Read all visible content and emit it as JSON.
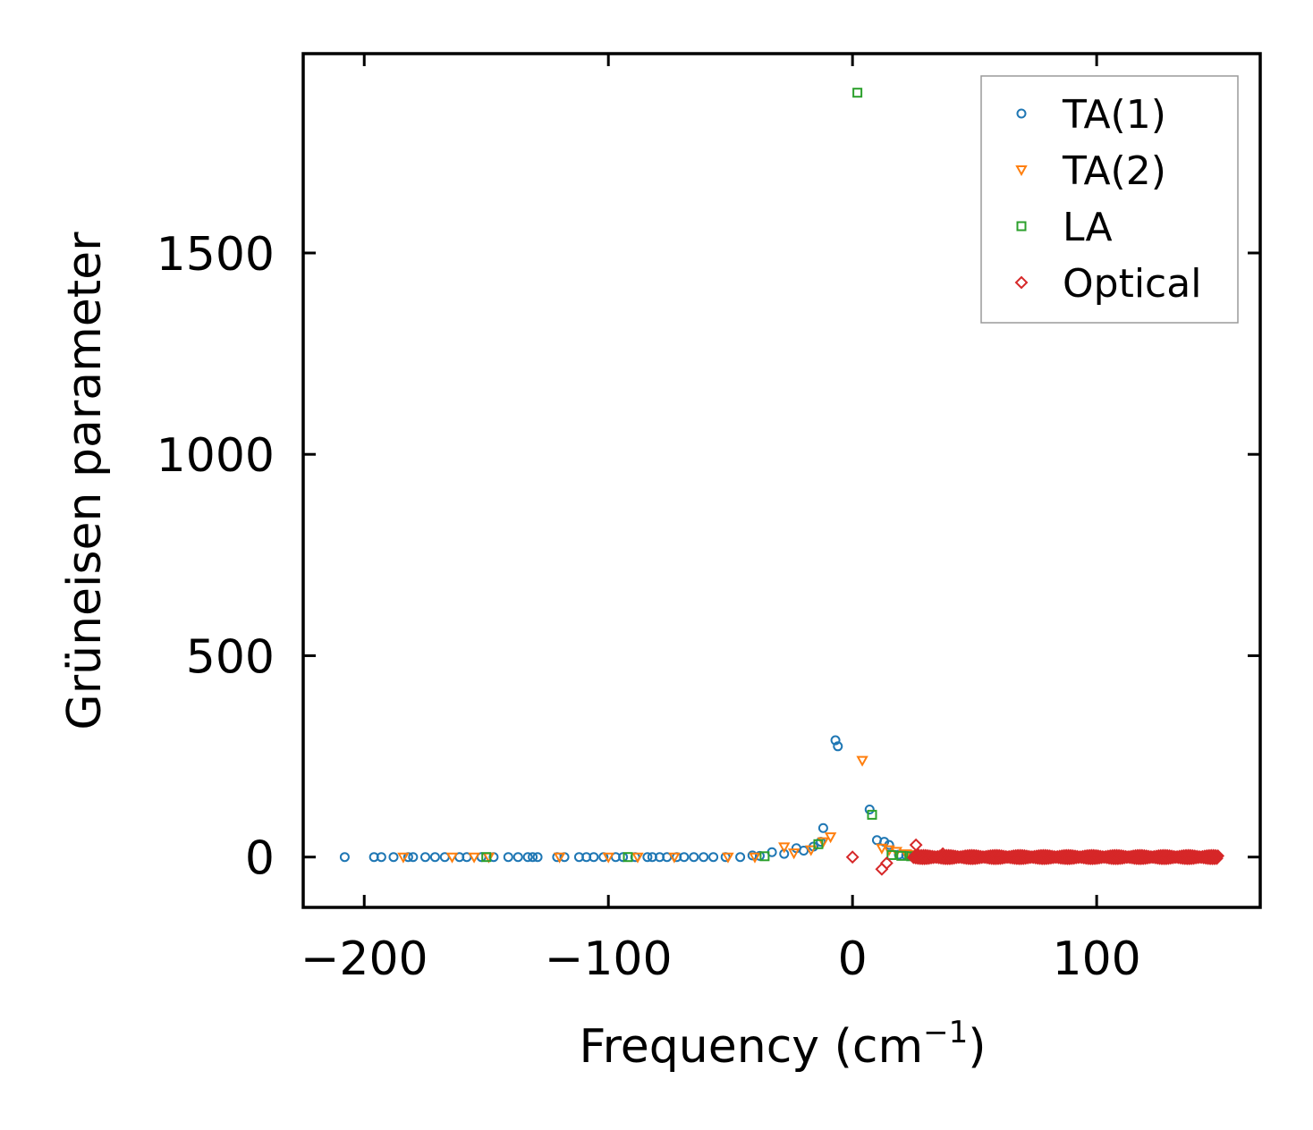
{
  "chart_data": {
    "type": "scatter",
    "xlabel": "Frequency (cm",
    "xlabel_sup": "−1",
    "xlabel_close": ")",
    "ylabel": "Grüneisen parameter",
    "xlim": [
      -225,
      167
    ],
    "ylim": [
      -125,
      1995
    ],
    "xticks": [
      -200,
      -100,
      0,
      100
    ],
    "xtick_labels": [
      "−200",
      "−100",
      "0",
      "100"
    ],
    "yticks": [
      0,
      500,
      1000,
      1500
    ],
    "ytick_labels": [
      "0",
      "500",
      "1000",
      "1500"
    ],
    "legend_position": "top-right",
    "series": [
      {
        "name": "TA(1)",
        "marker": "circle",
        "color": "#1f77b4",
        "points": [
          [
            -208,
            0
          ],
          [
            -196,
            0
          ],
          [
            -193,
            0
          ],
          [
            -188,
            0
          ],
          [
            -182,
            0
          ],
          [
            -180,
            0
          ],
          [
            -175,
            0
          ],
          [
            -171,
            0
          ],
          [
            -167,
            0
          ],
          [
            -161,
            0
          ],
          [
            -158,
            0
          ],
          [
            -152,
            0
          ],
          [
            -147,
            0
          ],
          [
            -141,
            0
          ],
          [
            -137,
            0
          ],
          [
            -133,
            0
          ],
          [
            -131,
            0
          ],
          [
            -129,
            0
          ],
          [
            -121,
            0
          ],
          [
            -118,
            0
          ],
          [
            -112,
            0
          ],
          [
            -109,
            0
          ],
          [
            -106,
            0
          ],
          [
            -102,
            0
          ],
          [
            -97,
            0
          ],
          [
            -94,
            0
          ],
          [
            -89,
            0
          ],
          [
            -84,
            0
          ],
          [
            -82,
            0
          ],
          [
            -79,
            0
          ],
          [
            -76,
            0
          ],
          [
            -72,
            0
          ],
          [
            -69,
            0
          ],
          [
            -65,
            0
          ],
          [
            -61,
            0
          ],
          [
            -57,
            0
          ],
          [
            -52,
            0
          ],
          [
            -46,
            0
          ],
          [
            -41,
            4
          ],
          [
            -38,
            3
          ],
          [
            -33,
            12
          ],
          [
            -28,
            8
          ],
          [
            -23,
            22
          ],
          [
            -20,
            16
          ],
          [
            -16,
            26
          ],
          [
            -13,
            38
          ],
          [
            -12,
            72
          ],
          [
            -7,
            290
          ],
          [
            -6,
            275
          ],
          [
            7,
            118
          ],
          [
            10,
            42
          ],
          [
            13,
            38
          ],
          [
            15,
            30
          ],
          [
            19,
            6
          ],
          [
            22,
            4
          ],
          [
            25,
            3
          ],
          [
            28,
            2
          ],
          [
            31,
            3
          ],
          [
            34,
            2
          ]
        ]
      },
      {
        "name": "TA(2)",
        "marker": "triangle-down",
        "color": "#ff7f0e",
        "points": [
          [
            -184,
            0
          ],
          [
            -164,
            0
          ],
          [
            -155,
            0
          ],
          [
            -149,
            0
          ],
          [
            -120,
            0
          ],
          [
            -100,
            0
          ],
          [
            -88,
            0
          ],
          [
            -73,
            0
          ],
          [
            -51,
            0
          ],
          [
            -40,
            0
          ],
          [
            -28,
            25
          ],
          [
            -24,
            10
          ],
          [
            -17,
            18
          ],
          [
            -12,
            38
          ],
          [
            -9,
            50
          ],
          [
            4,
            240
          ],
          [
            12,
            22
          ],
          [
            15,
            18
          ],
          [
            18,
            14
          ],
          [
            22,
            8
          ],
          [
            26,
            6
          ],
          [
            30,
            5
          ]
        ]
      },
      {
        "name": "LA",
        "marker": "square",
        "color": "#2ca02c",
        "points": [
          [
            -150,
            0
          ],
          [
            -92,
            0
          ],
          [
            -36,
            2
          ],
          [
            -14,
            32
          ],
          [
            2,
            1898
          ],
          [
            8,
            105
          ],
          [
            16,
            5
          ],
          [
            20,
            3
          ],
          [
            24,
            2
          ],
          [
            28,
            1
          ],
          [
            32,
            1
          ],
          [
            36,
            1
          ],
          [
            40,
            1
          ],
          [
            44,
            1
          ],
          [
            46,
            1
          ]
        ]
      },
      {
        "name": "Optical",
        "marker": "diamond",
        "color": "#d62728",
        "points": [
          [
            0,
            0
          ],
          [
            12,
            -30
          ],
          [
            14,
            -15
          ],
          [
            26,
            30
          ],
          [
            27,
            5
          ],
          [
            33,
            0
          ],
          [
            37,
            8
          ]
        ],
        "dense_band": {
          "x_range": [
            25,
            150
          ],
          "y": 0
        }
      }
    ]
  }
}
